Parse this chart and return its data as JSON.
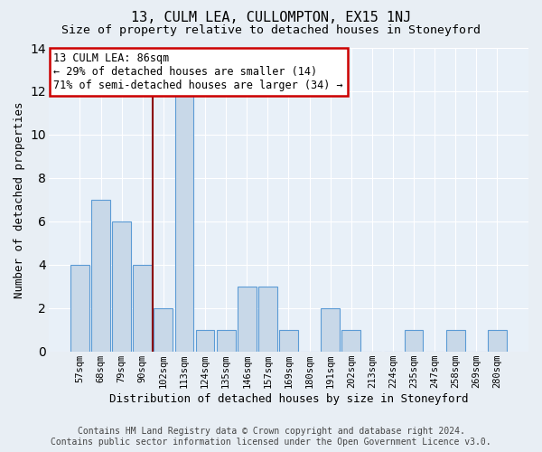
{
  "title": "13, CULM LEA, CULLOMPTON, EX15 1NJ",
  "subtitle": "Size of property relative to detached houses in Stoneyford",
  "xlabel": "Distribution of detached houses by size in Stoneyford",
  "ylabel": "Number of detached properties",
  "footer_line1": "Contains HM Land Registry data © Crown copyright and database right 2024.",
  "footer_line2": "Contains public sector information licensed under the Open Government Licence v3.0.",
  "categories": [
    "57sqm",
    "68sqm",
    "79sqm",
    "90sqm",
    "102sqm",
    "113sqm",
    "124sqm",
    "135sqm",
    "146sqm",
    "157sqm",
    "169sqm",
    "180sqm",
    "191sqm",
    "202sqm",
    "213sqm",
    "224sqm",
    "235sqm",
    "247sqm",
    "258sqm",
    "269sqm",
    "280sqm"
  ],
  "values": [
    4,
    7,
    6,
    4,
    2,
    12,
    1,
    1,
    3,
    3,
    1,
    0,
    2,
    1,
    0,
    0,
    1,
    0,
    1,
    0,
    1
  ],
  "bar_color": "#c8d8e8",
  "bar_edge_color": "#5b9bd5",
  "vline_x": 3.5,
  "vline_color": "#8b0000",
  "annotation_line1": "13 CULM LEA: 86sqm",
  "annotation_line2": "← 29% of detached houses are smaller (14)",
  "annotation_line3": "71% of semi-detached houses are larger (34) →",
  "annotation_box_color": "#ffffff",
  "annotation_box_edge_color": "#cc0000",
  "ylim": [
    0,
    14
  ],
  "yticks": [
    0,
    2,
    4,
    6,
    8,
    10,
    12,
    14
  ],
  "bg_color": "#e8eef4",
  "plot_bg_color": "#e8f0f8",
  "grid_color": "#ffffff",
  "title_fontsize": 11,
  "subtitle_fontsize": 9.5,
  "xlabel_fontsize": 9,
  "ylabel_fontsize": 9,
  "tick_fontsize": 7.5,
  "annotation_fontsize": 8.5,
  "footer_fontsize": 7
}
